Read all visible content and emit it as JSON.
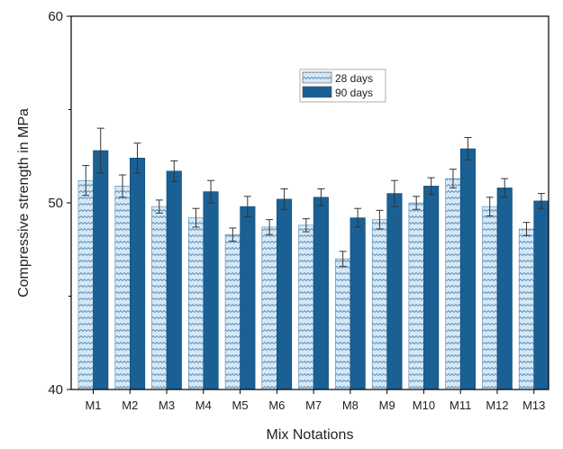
{
  "chart_data": {
    "type": "bar",
    "title": "",
    "xlabel": "Mix Notations",
    "ylabel": "Compressive strength in MPa",
    "ylim": [
      40,
      60
    ],
    "yticks": [
      "40",
      "50",
      "60"
    ],
    "categories": [
      "M1",
      "M2",
      "M3",
      "M4",
      "M5",
      "M6",
      "M7",
      "M8",
      "M9",
      "M10",
      "M11",
      "M12",
      "M13"
    ],
    "series": [
      {
        "name": "28 days",
        "color": "#cfe3f3",
        "pattern_color": "#4f86b3",
        "values": [
          51.2,
          50.9,
          49.8,
          49.2,
          48.3,
          48.7,
          48.8,
          47.0,
          49.1,
          50.0,
          51.3,
          49.8,
          48.6
        ],
        "errors": [
          0.8,
          0.6,
          0.35,
          0.5,
          0.35,
          0.4,
          0.35,
          0.4,
          0.5,
          0.35,
          0.5,
          0.5,
          0.35
        ]
      },
      {
        "name": "90 days",
        "color": "#1a6094",
        "values": [
          52.8,
          52.4,
          51.7,
          50.6,
          49.8,
          50.2,
          50.3,
          49.2,
          50.5,
          50.9,
          52.9,
          50.8,
          50.1
        ],
        "errors": [
          1.2,
          0.8,
          0.55,
          0.6,
          0.55,
          0.55,
          0.45,
          0.5,
          0.7,
          0.45,
          0.6,
          0.5,
          0.4
        ]
      }
    ],
    "legend": "top-center",
    "grid": false
  }
}
